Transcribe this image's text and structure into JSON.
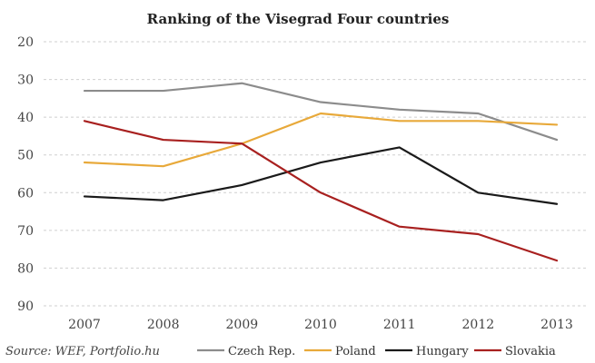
{
  "chart_data": {
    "type": "line",
    "title": "Ranking of the Visegrad Four countries",
    "x": [
      "2007",
      "2008",
      "2009",
      "2010",
      "2011",
      "2012",
      "2013"
    ],
    "y_ticks": [
      20,
      30,
      40,
      50,
      60,
      70,
      80,
      90
    ],
    "ylim": [
      20,
      90
    ],
    "y_inverted": true,
    "grid": true,
    "legend_placement": "bottom",
    "source": "Source: WEF, Portfolio.hu",
    "series": [
      {
        "name": "Czech Rep.",
        "color": "#8c8c8c",
        "values": [
          33,
          33,
          31,
          36,
          38,
          39,
          46
        ]
      },
      {
        "name": "Poland",
        "color": "#e8a93a",
        "values": [
          52,
          53,
          47,
          39,
          41,
          41,
          42
        ]
      },
      {
        "name": "Hungary",
        "color": "#1a1a1a",
        "values": [
          61,
          62,
          58,
          52,
          48,
          60,
          63
        ]
      },
      {
        "name": "Slovakia",
        "color": "#a8201f",
        "values": [
          41,
          46,
          47,
          60,
          69,
          71,
          78
        ]
      }
    ]
  }
}
